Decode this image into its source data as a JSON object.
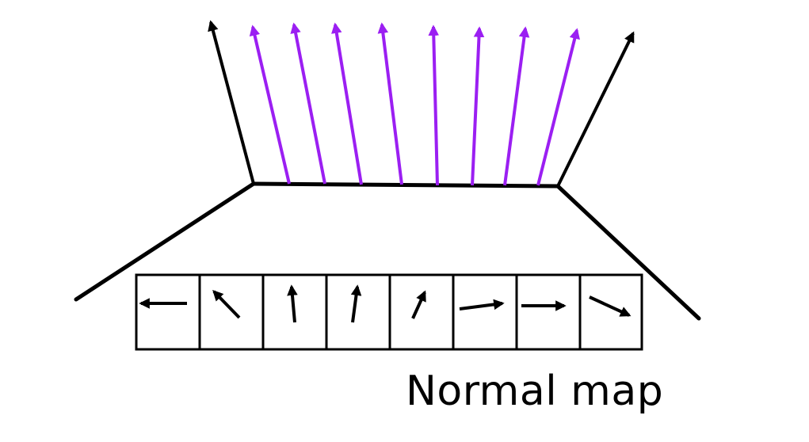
{
  "caption": "Normal map",
  "colors": {
    "surface": "#000000",
    "surface_normal": "#000000",
    "perturbed_normal": "#9b1ff2",
    "cell_arrow": "#000000",
    "background": "#ffffff"
  },
  "normal_map": {
    "cell_count": 8,
    "cell_directions": [
      "left",
      "up-left",
      "up",
      "up-slight-right",
      "up-right",
      "right-slight-up",
      "right",
      "down-right"
    ]
  },
  "perturbed_normals_count": 8,
  "icons": [
    "arrow-icon"
  ]
}
